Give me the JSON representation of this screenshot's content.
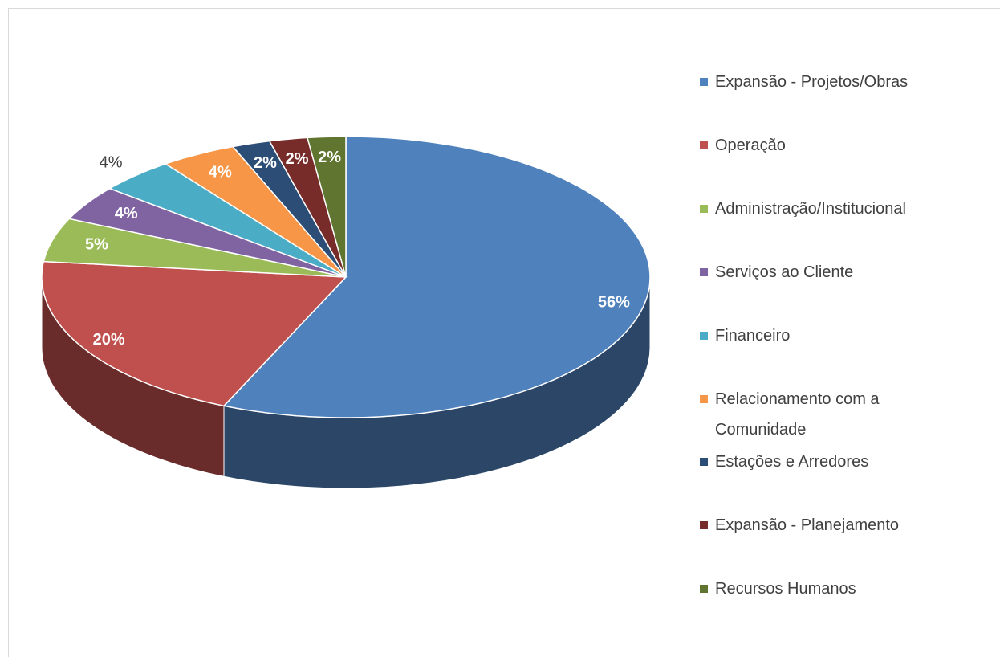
{
  "chart_data": {
    "type": "pie",
    "categories": [
      "Expansão - Projetos/Obras",
      "Operação",
      "Administração/Institucional",
      "Serviços ao Cliente",
      "Financeiro",
      "Relacionamento com a Comunidade",
      "Estações e Arredores",
      "Expansão - Planejamento",
      "Recursos Humanos"
    ],
    "values": [
      56,
      20,
      5,
      4,
      4,
      4,
      2,
      2,
      2
    ],
    "value_labels": [
      "56%",
      "20%",
      "5%",
      "4%",
      "4%",
      "4%",
      "2%",
      "2%",
      "2%"
    ],
    "colors": [
      "#4f81bd",
      "#c0504d",
      "#9bbb59",
      "#8064a2",
      "#4bacc6",
      "#f79646",
      "#2c4d75",
      "#772c2a",
      "#5f7530"
    ],
    "legend": "right"
  }
}
